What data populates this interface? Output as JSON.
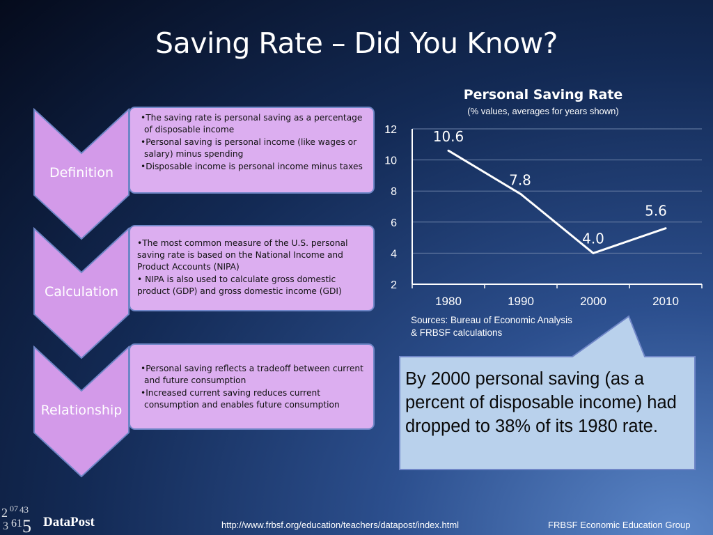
{
  "title": "Saving Rate – Did You Know?",
  "sections": [
    {
      "label": "Definition",
      "bullets": [
        "•The saving rate is personal saving as a percentage of disposable income",
        "•Personal saving is personal income (like wages or salary) minus spending",
        "•Disposable income is personal income minus taxes"
      ]
    },
    {
      "label": "Calculation",
      "bullets": [
        "•The most common measure of the U.S. personal saving rate is based on the National Income and Product Accounts (NIPA)",
        "• NIPA is also used to calculate gross domestic product (GDP) and gross domestic income (GDI)"
      ]
    },
    {
      "label": "Relationship",
      "bullets": [
        "•Personal saving reflects a tradeoff between current and future consumption",
        "•Increased current saving reduces current consumption and enables future consumption"
      ]
    }
  ],
  "chart_data": {
    "type": "line",
    "title": "Personal Saving Rate",
    "subtitle": "(% values, averages for years shown)",
    "categories": [
      "1980",
      "1990",
      "2000",
      "2010"
    ],
    "values": [
      10.6,
      7.8,
      4.0,
      5.6
    ],
    "data_labels": [
      "10.6",
      "7.8",
      "4.0",
      "5.6"
    ],
    "yticks": [
      "12",
      "10",
      "8",
      "6",
      "4",
      "2"
    ],
    "ylim": [
      2,
      12
    ],
    "grid": true,
    "line_color": "#ffffff"
  },
  "sources": [
    "Sources: Bureau of Economic Analysis",
    "& FRBSF calculations"
  ],
  "callout": "By 2000 personal saving (as a percent of disposable income) had dropped to 38% of its 1980 rate.",
  "footer": {
    "url": "http://www.frbsf.org/education/teachers/datapost/index.html",
    "group": "FRBSF Economic Education Group",
    "logo_text": "DataPost"
  },
  "colors": {
    "chevron": "#d39ae9",
    "chevron_border": "#6f86c7",
    "box": "#dcaef0",
    "callout_bg": "#b9d1ec"
  }
}
